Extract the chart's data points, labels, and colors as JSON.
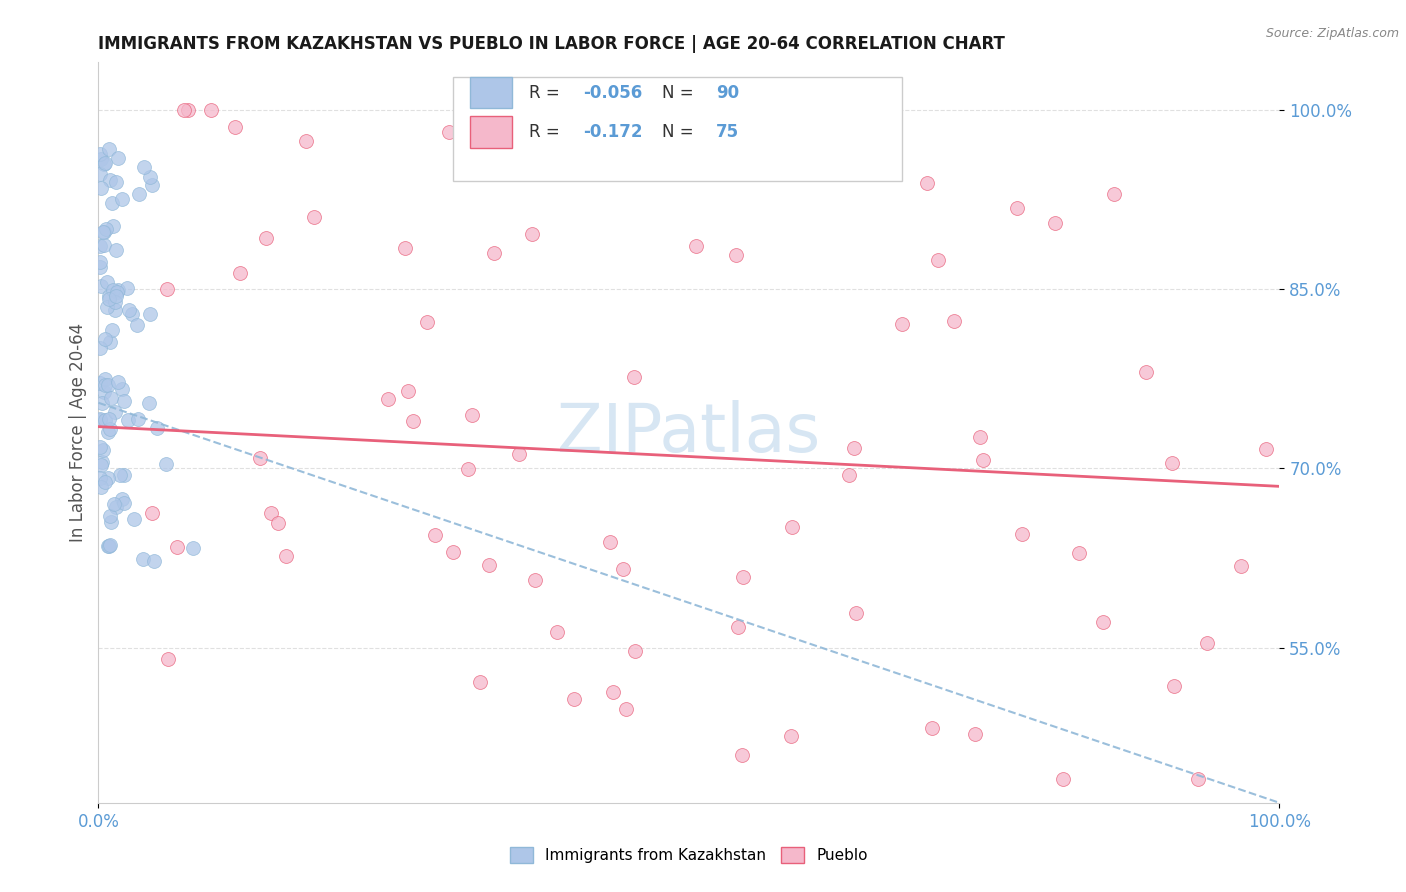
{
  "title": "IMMIGRANTS FROM KAZAKHSTAN VS PUEBLO IN LABOR FORCE | AGE 20-64 CORRELATION CHART",
  "source": "Source: ZipAtlas.com",
  "ylabel": "In Labor Force | Age 20-64",
  "xlim": [
    0.0,
    1.0
  ],
  "ylim": [
    0.42,
    1.04
  ],
  "yticks": [
    0.55,
    0.7,
    0.85,
    1.0
  ],
  "ytick_labels": [
    "55.0%",
    "70.0%",
    "85.0%",
    "100.0%"
  ],
  "xticks": [
    0.0,
    1.0
  ],
  "xtick_labels": [
    "0.0%",
    "100.0%"
  ],
  "legend_labels": [
    "Immigrants from Kazakhstan",
    "Pueblo"
  ],
  "legend_R": [
    -0.056,
    -0.172
  ],
  "legend_N": [
    90,
    75
  ],
  "scatter_color_blue": "#aec6e8",
  "scatter_color_pink": "#f5b8cb",
  "trend_color_blue": "#90b8d8",
  "trend_color_pink": "#e8607a",
  "blue_trend": [
    0.755,
    0.42
  ],
  "pink_trend": [
    0.735,
    0.685
  ],
  "watermark_text": "ZIPatlas",
  "watermark_color": "#cde0f0",
  "grid_color": "#e0e0e0",
  "tick_color": "#5b9bd5",
  "blue_seed": 12,
  "pink_seed": 77
}
